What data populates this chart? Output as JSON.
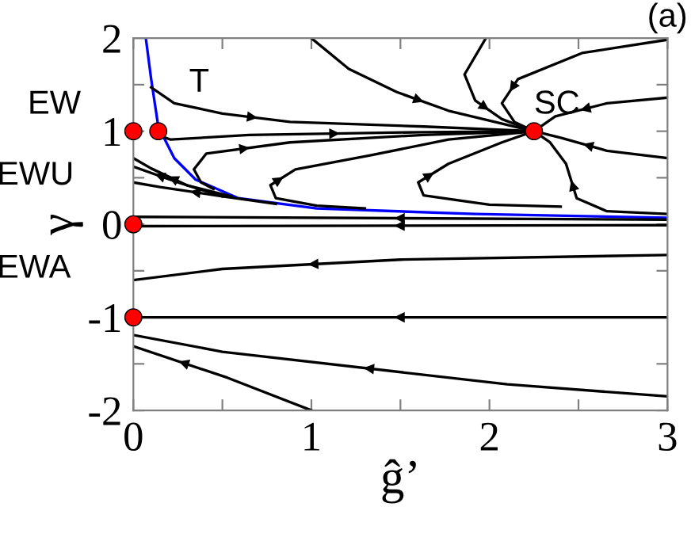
{
  "chart_data": {
    "type": "line",
    "xlabel": "ĝ’",
    "ylabel": "γ",
    "xlim": [
      0,
      3
    ],
    "ylim": [
      -2,
      2
    ],
    "xticks": [
      0,
      {
        "value": 0.5,
        "label": null
      },
      1,
      {
        "value": 1.5,
        "label": null
      },
      2,
      {
        "value": 2.5,
        "label": null
      },
      3
    ],
    "yticks": [
      -2,
      {
        "value": -1.5,
        "label": null
      },
      -1,
      {
        "value": -0.5,
        "label": null
      },
      0,
      {
        "value": 0.5,
        "label": null
      },
      1,
      {
        "value": 1.5,
        "label": null
      },
      2
    ],
    "grid": false,
    "legend": false,
    "line_style": "solid",
    "annotations": [
      {
        "text": "EW",
        "x": 0,
        "y": 1
      },
      {
        "text": "T",
        "x": 0.14,
        "y": 1
      },
      {
        "text": "SC",
        "x": 2.25,
        "y": 1
      },
      {
        "text": "EWU",
        "x": 0,
        "y": 0
      },
      {
        "text": "EWA",
        "x": 0,
        "y": -1
      },
      "(a)"
    ],
    "series": [
      {
        "color": "#0000ff",
        "x": [
          0.07,
          0.1,
          0.14,
          0.23,
          0.35,
          0.59,
          1.03,
          1.92,
          2.99
        ],
        "values": [
          2.0,
          1.56,
          1.05,
          0.71,
          0.48,
          0.28,
          0.17,
          0.11,
          0.07
        ]
      },
      {
        "color": "#000000",
        "x": [
          0.1,
          0.23,
          0.5,
          0.88,
          1.63,
          2.25
        ],
        "values": [
          1.47,
          1.3,
          1.19,
          1.1,
          1.05,
          1.0
        ]
      },
      {
        "color": "#000000",
        "x": [
          1.0,
          1.21,
          1.48,
          1.77,
          2.25
        ],
        "values": [
          2.0,
          1.67,
          1.42,
          1.22,
          1.0
        ]
      },
      {
        "color": "#000000",
        "x": [
          1.98,
          1.86,
          1.92,
          2.07,
          2.25
        ],
        "values": [
          2.0,
          1.61,
          1.33,
          1.13,
          1.0
        ]
      },
      {
        "color": "#000000",
        "x": [
          2.99,
          2.52,
          2.16,
          2.07,
          2.14,
          2.25
        ],
        "values": [
          1.98,
          1.84,
          1.56,
          1.3,
          1.1,
          1.0
        ]
      },
      {
        "color": "#000000",
        "x": [
          3.0,
          2.66,
          2.37,
          2.25
        ],
        "values": [
          1.36,
          1.3,
          1.16,
          1.0
        ]
      },
      {
        "color": "#000000",
        "x": [
          3.0,
          2.66,
          2.4,
          2.25
        ],
        "values": [
          0.71,
          0.79,
          0.93,
          1.0
        ]
      },
      {
        "color": "#000000",
        "x": [
          3.0,
          2.66,
          2.49,
          2.43,
          2.34,
          2.25
        ],
        "values": [
          0.11,
          0.14,
          0.28,
          0.65,
          0.88,
          1.0
        ]
      },
      {
        "color": "#000000",
        "x": [
          2.4,
          2.0,
          1.63,
          1.6,
          1.77,
          2.07,
          2.25
        ],
        "values": [
          0.19,
          0.21,
          0.31,
          0.45,
          0.65,
          0.88,
          1.0
        ]
      },
      {
        "color": "#000000",
        "x": [
          1.3,
          1.03,
          0.8,
          0.77,
          0.91,
          1.33,
          1.77,
          2.25
        ],
        "values": [
          0.17,
          0.2,
          0.28,
          0.42,
          0.59,
          0.74,
          0.91,
          1.0
        ]
      },
      {
        "color": "#000000",
        "x": [
          0.45,
          0.38,
          0.34,
          0.41,
          0.88,
          1.63,
          2.25
        ],
        "values": [
          0.38,
          0.45,
          0.59,
          0.76,
          0.88,
          0.96,
          1.0
        ]
      },
      {
        "color": "#000000",
        "x": [
          0.18,
          0.21,
          0.65,
          1.63,
          2.25
        ],
        "values": [
          0.93,
          0.91,
          0.96,
          0.99,
          1.0
        ]
      },
      {
        "color": "#000000",
        "x": [
          0.55,
          0.3,
          0.1,
          0.0
        ],
        "values": [
          0.3,
          0.42,
          0.6,
          0.71
        ]
      },
      {
        "color": "#000000",
        "x": [
          0.5,
          0.25,
          0.0
        ],
        "values": [
          0.3,
          0.45,
          0.62
        ]
      },
      {
        "color": "#000000",
        "x": [
          0.8,
          0.5,
          0.15,
          0.0
        ],
        "values": [
          0.22,
          0.3,
          0.4,
          0.45
        ]
      },
      {
        "color": "#000000",
        "x": [
          3.0,
          0.0
        ],
        "values": [
          0.05,
          0.08
        ]
      },
      {
        "color": "#000000",
        "x": [
          3.0,
          0.0
        ],
        "values": [
          -0.01,
          -0.02
        ]
      },
      {
        "color": "#000000",
        "x": [
          3.0,
          1.5,
          0.5,
          0.0
        ],
        "values": [
          -0.33,
          -0.38,
          -0.48,
          -0.6
        ]
      },
      {
        "color": "#000000",
        "x": [
          3.0,
          0.0
        ],
        "values": [
          -1.0,
          -1.0
        ]
      },
      {
        "color": "#000000",
        "x": [
          3.0,
          2.1,
          0.5,
          0.0
        ],
        "values": [
          -1.85,
          -1.72,
          -1.37,
          -1.19
        ]
      },
      {
        "color": "#000000",
        "x": [
          1.0,
          0.53,
          0.0
        ],
        "values": [
          -2.0,
          -1.65,
          -1.31
        ]
      },
      {
        "type": "scatter",
        "color": "#ff0000",
        "marker": "circle",
        "x": [
          0,
          0.14,
          2.25,
          0,
          0
        ],
        "values": [
          1,
          1,
          1,
          0,
          -1
        ]
      }
    ]
  }
}
